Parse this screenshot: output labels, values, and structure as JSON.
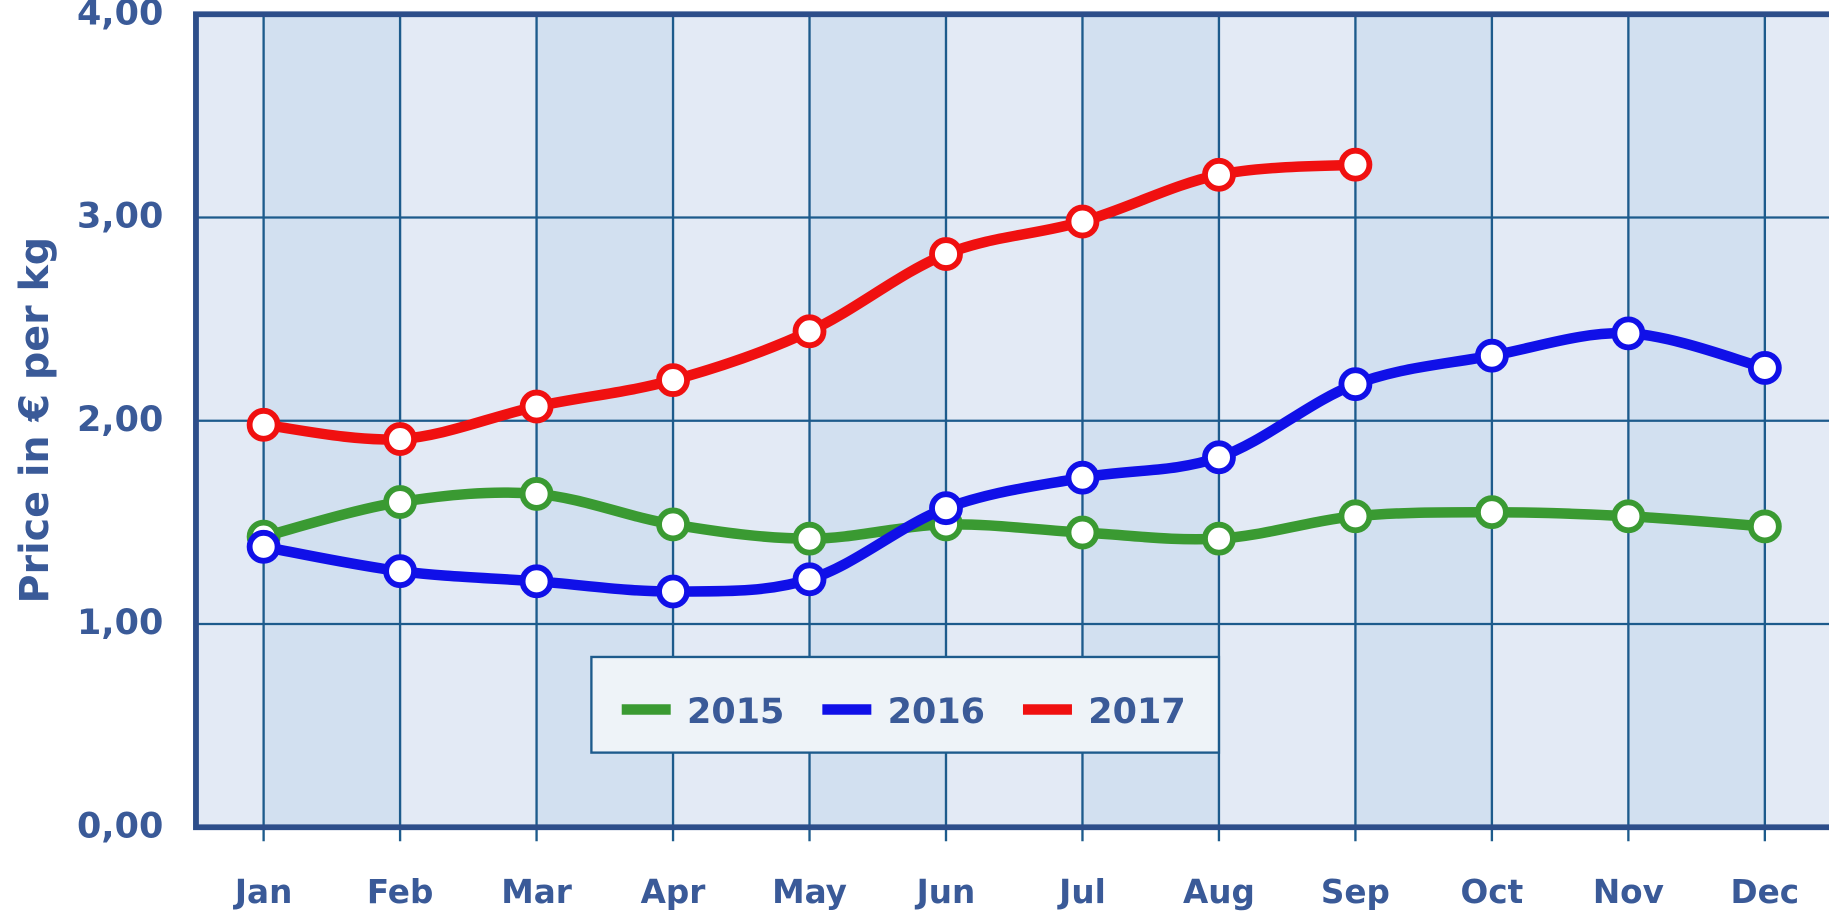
{
  "chart_data": {
    "type": "line",
    "y_label": "Price in € per kg",
    "categories": [
      "Jan",
      "Feb",
      "Mar",
      "Apr",
      "May",
      "Jun",
      "Jul",
      "Aug",
      "Sep",
      "Oct",
      "Nov",
      "Dec"
    ],
    "series": [
      {
        "name": "2015",
        "color": "#3a9a32",
        "values": [
          1.43,
          1.6,
          1.64,
          1.49,
          1.42,
          1.49,
          1.45,
          1.42,
          1.53,
          1.55,
          1.53,
          1.48
        ]
      },
      {
        "name": "2016",
        "color": "#1010e8",
        "values": [
          1.38,
          1.26,
          1.21,
          1.16,
          1.22,
          1.57,
          1.72,
          1.82,
          2.18,
          2.32,
          2.43,
          2.26
        ]
      },
      {
        "name": "2017",
        "color": "#f01010",
        "values": [
          1.98,
          1.91,
          2.07,
          2.2,
          2.44,
          2.82,
          2.98,
          3.21,
          3.26,
          null,
          null,
          null
        ]
      }
    ],
    "ylim": [
      0,
      4
    ],
    "yticks": [
      {
        "value": 0,
        "label": "0,00"
      },
      {
        "value": 1,
        "label": "1,00"
      },
      {
        "value": 2,
        "label": "2,00"
      },
      {
        "value": 3,
        "label": "3,00"
      },
      {
        "value": 4,
        "label": "4,00"
      }
    ],
    "grid": true
  }
}
